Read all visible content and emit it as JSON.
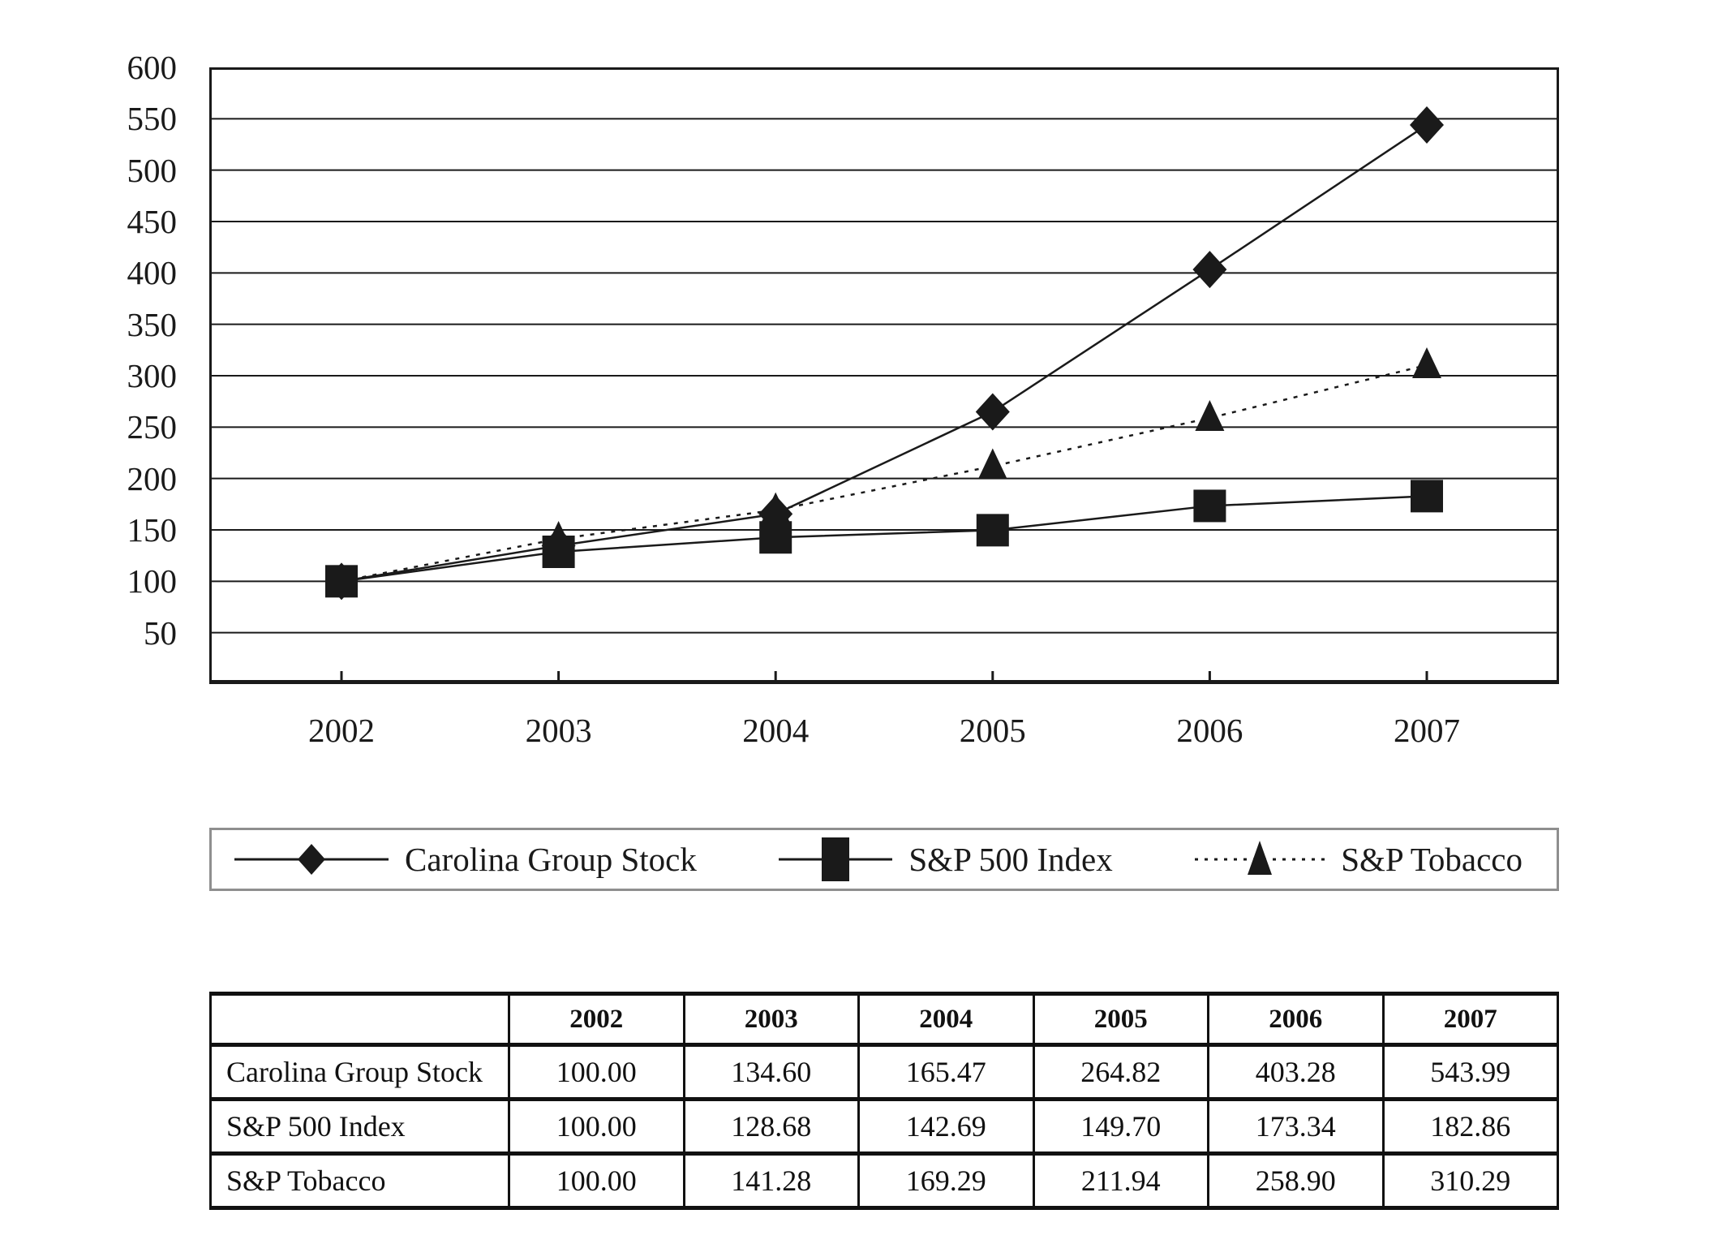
{
  "chart_data": {
    "type": "line",
    "categories": [
      "2002",
      "2003",
      "2004",
      "2005",
      "2006",
      "2007"
    ],
    "series": [
      {
        "name": "Carolina Group Stock",
        "marker": "diamond",
        "line_style": "solid",
        "values": [
          100.0,
          134.6,
          165.47,
          264.82,
          403.28,
          543.99
        ]
      },
      {
        "name": "S&P 500 Index",
        "marker": "square",
        "line_style": "solid",
        "values": [
          100.0,
          128.68,
          142.69,
          149.7,
          173.34,
          182.86
        ]
      },
      {
        "name": "S&P Tobacco",
        "marker": "triangle",
        "line_style": "dotted",
        "values": [
          100.0,
          141.28,
          169.29,
          211.94,
          258.9,
          310.29
        ]
      }
    ],
    "ylim": [
      0,
      600
    ],
    "yticks": [
      50,
      100,
      150,
      200,
      250,
      300,
      350,
      400,
      450,
      500,
      550,
      600
    ],
    "grid": true,
    "legend_position": "below",
    "colors": {
      "series": "#1a1a1a",
      "grid": "#1a1a1a",
      "plot_border": "#1a1a1a",
      "legend_border": "#8f8f8f",
      "background": "#ffffff"
    }
  },
  "table": {
    "header": [
      "",
      "2002",
      "2003",
      "2004",
      "2005",
      "2006",
      "2007"
    ],
    "rows": [
      {
        "label": "Carolina Group Stock",
        "values": [
          "100.00",
          "134.60",
          "165.47",
          "264.82",
          "403.28",
          "543.99"
        ]
      },
      {
        "label": "S&P 500 Index",
        "values": [
          "100.00",
          "128.68",
          "142.69",
          "149.70",
          "173.34",
          "182.86"
        ]
      },
      {
        "label": "S&P Tobacco",
        "values": [
          "100.00",
          "141.28",
          "169.29",
          "211.94",
          "258.90",
          "310.29"
        ]
      }
    ]
  }
}
